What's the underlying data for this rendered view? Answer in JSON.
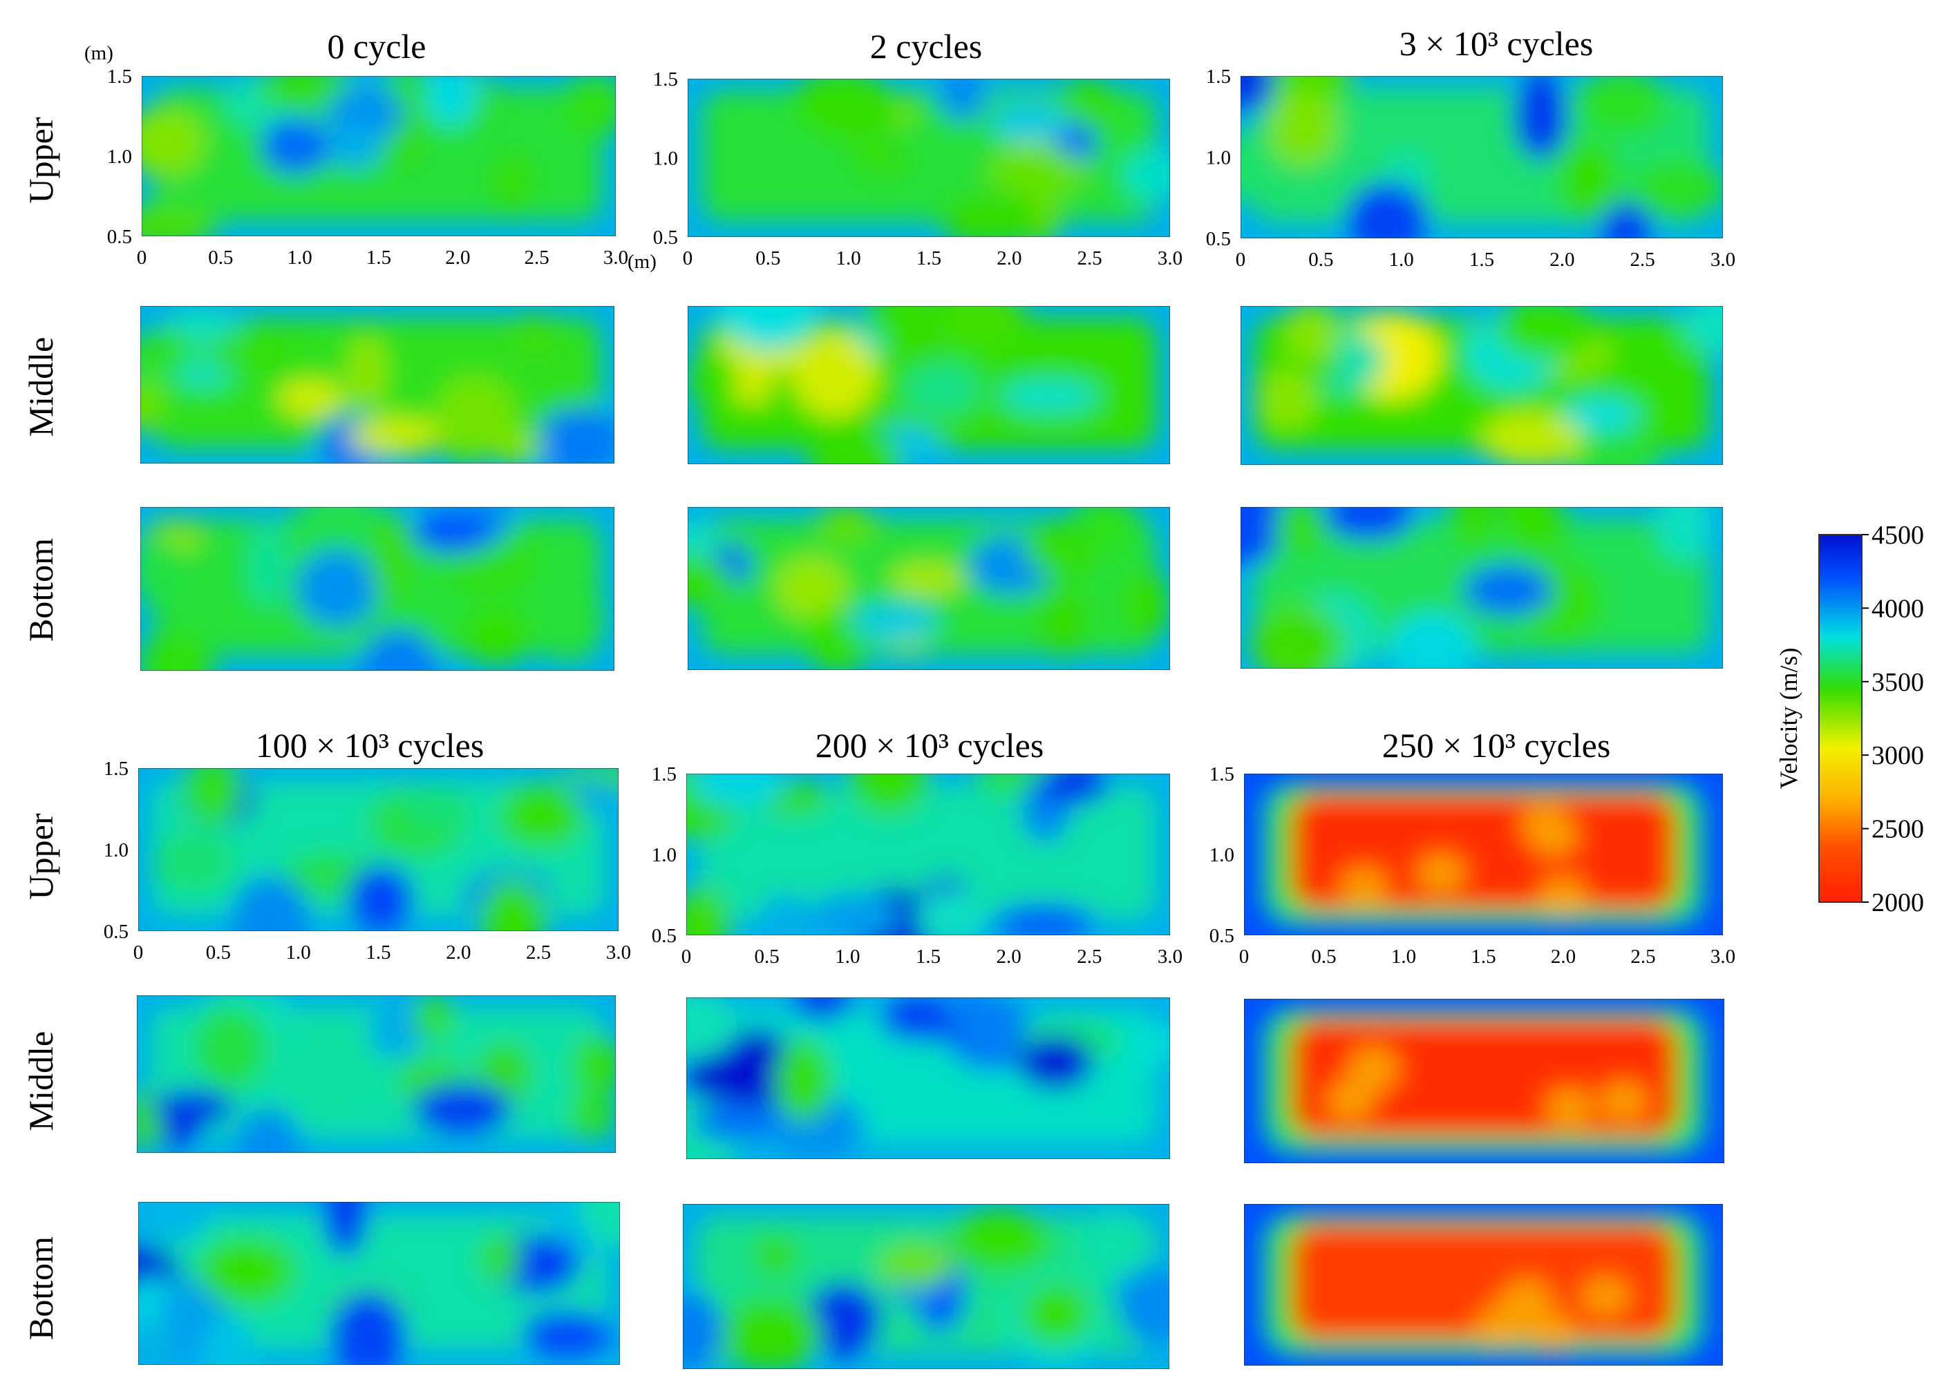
{
  "chart_data": {
    "type": "heatmap",
    "panels": [
      {
        "title": "0 cycle",
        "rows": [
          "Upper",
          "Middle",
          "Bottom"
        ]
      },
      {
        "title": "2 cycles",
        "rows": [
          "Upper",
          "Middle",
          "Bottom"
        ]
      },
      {
        "title": "3 × 10³ cycles",
        "rows": [
          "Upper",
          "Middle",
          "Bottom"
        ]
      },
      {
        "title": "100 × 10³ cycles",
        "rows": [
          "Upper",
          "Middle",
          "Bottom"
        ]
      },
      {
        "title": "200 × 10³ cycles",
        "rows": [
          "Upper",
          "Middle",
          "Bottom"
        ]
      },
      {
        "title": "250 × 10³ cycles",
        "rows": [
          "Upper",
          "Middle",
          "Bottom"
        ]
      }
    ],
    "row_labels": [
      "Upper",
      "Middle",
      "Bottom"
    ],
    "x_ticks": [
      "0",
      "0.5",
      "1.0",
      "1.5",
      "2.0",
      "2.5",
      "3.0"
    ],
    "y_ticks": [
      "0.5",
      "1.0",
      "1.5"
    ],
    "x_range": [
      0,
      3.0
    ],
    "y_range": [
      0.5,
      1.5
    ],
    "unit_label": "(m)",
    "colorbar": {
      "label": "Velocity (m/s)",
      "ticks": [
        "4500",
        "4000",
        "3500",
        "3000",
        "2500",
        "2000"
      ],
      "range": [
        2000,
        4500
      ],
      "colors": [
        "#ff2000",
        "#ff6a00",
        "#ffd400",
        "#f2f000",
        "#33dd00",
        "#00e0e0",
        "#0030ff",
        "#0010d0"
      ]
    },
    "velocity_levels": {
      "0 cycle": {
        "Upper": 3700,
        "Middle": 3650,
        "Bottom": 3700
      },
      "2 cycles": {
        "Upper": 3700,
        "Middle": 3550,
        "Bottom": 3700
      },
      "3 × 10³ cycles": {
        "Upper": 3800,
        "Middle": 3600,
        "Bottom": 3750
      },
      "100 × 10³ cycles": {
        "Upper": 3900,
        "Middle": 3900,
        "Bottom": 3900
      },
      "200 × 10³ cycles": {
        "Upper": 3900,
        "Middle": 3950,
        "Bottom": 3850
      },
      "250 × 10³ cycles": {
        "Upper": 2100,
        "Middle": 2100,
        "Bottom": 2200
      }
    }
  }
}
